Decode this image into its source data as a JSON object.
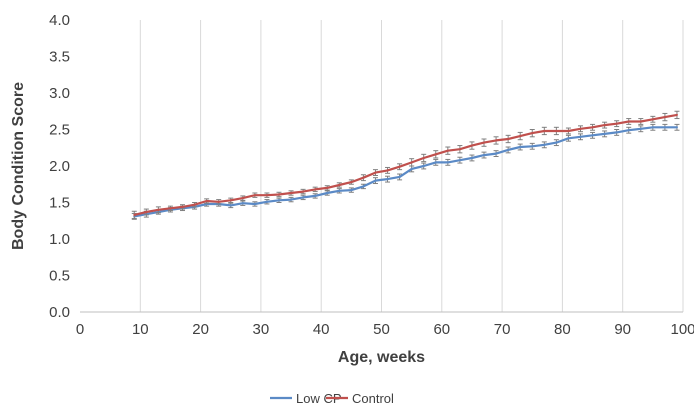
{
  "chart_data": {
    "type": "line",
    "xlabel": "Age, weeks",
    "ylabel": "Body Condition Score",
    "xlim": [
      0,
      100
    ],
    "ylim": [
      0.0,
      4.0
    ],
    "x_ticks": [
      "0",
      "10",
      "20",
      "30",
      "40",
      "50",
      "60",
      "70",
      "80",
      "90",
      "100"
    ],
    "y_ticks": [
      "0.0",
      "0.5",
      "1.0",
      "1.5",
      "2.0",
      "2.5",
      "3.0",
      "3.5",
      "4.0"
    ],
    "grid": "vertical",
    "error_bars": true,
    "legend_position": "bottom",
    "x": [
      9,
      11,
      13,
      15,
      17,
      19,
      21,
      23,
      25,
      27,
      29,
      31,
      33,
      35,
      37,
      39,
      41,
      43,
      45,
      47,
      49,
      51,
      53,
      55,
      57,
      59,
      61,
      63,
      65,
      67,
      69,
      71,
      73,
      75,
      77,
      79,
      81,
      83,
      85,
      87,
      89,
      91,
      93,
      95,
      97,
      99
    ],
    "series": [
      {
        "name": "Low CP",
        "color": "#5b8ac6",
        "values": [
          1.31,
          1.34,
          1.37,
          1.4,
          1.42,
          1.44,
          1.48,
          1.48,
          1.46,
          1.49,
          1.48,
          1.51,
          1.53,
          1.54,
          1.57,
          1.59,
          1.63,
          1.66,
          1.67,
          1.72,
          1.8,
          1.82,
          1.85,
          1.96,
          2.0,
          2.05,
          2.05,
          2.08,
          2.11,
          2.15,
          2.17,
          2.22,
          2.26,
          2.27,
          2.29,
          2.32,
          2.38,
          2.4,
          2.42,
          2.44,
          2.46,
          2.49,
          2.51,
          2.53,
          2.53,
          2.53
        ],
        "errors": [
          0.04,
          0.04,
          0.03,
          0.03,
          0.03,
          0.03,
          0.03,
          0.03,
          0.03,
          0.03,
          0.03,
          0.03,
          0.03,
          0.03,
          0.03,
          0.03,
          0.03,
          0.03,
          0.03,
          0.03,
          0.04,
          0.04,
          0.04,
          0.04,
          0.04,
          0.04,
          0.04,
          0.04,
          0.04,
          0.04,
          0.04,
          0.04,
          0.04,
          0.04,
          0.04,
          0.04,
          0.04,
          0.04,
          0.04,
          0.04,
          0.04,
          0.04,
          0.04,
          0.04,
          0.04,
          0.04
        ]
      },
      {
        "name": "Control",
        "color": "#c0504d",
        "values": [
          1.33,
          1.37,
          1.4,
          1.42,
          1.44,
          1.47,
          1.52,
          1.51,
          1.53,
          1.56,
          1.6,
          1.6,
          1.61,
          1.63,
          1.65,
          1.68,
          1.7,
          1.74,
          1.78,
          1.84,
          1.91,
          1.94,
          1.99,
          2.05,
          2.11,
          2.16,
          2.21,
          2.23,
          2.28,
          2.32,
          2.35,
          2.37,
          2.41,
          2.45,
          2.48,
          2.48,
          2.48,
          2.51,
          2.53,
          2.56,
          2.58,
          2.61,
          2.61,
          2.64,
          2.67,
          2.7
        ],
        "errors": [
          0.05,
          0.04,
          0.04,
          0.03,
          0.03,
          0.03,
          0.03,
          0.03,
          0.03,
          0.03,
          0.03,
          0.03,
          0.03,
          0.03,
          0.03,
          0.03,
          0.03,
          0.03,
          0.03,
          0.04,
          0.04,
          0.04,
          0.04,
          0.05,
          0.05,
          0.05,
          0.05,
          0.05,
          0.05,
          0.05,
          0.05,
          0.05,
          0.05,
          0.05,
          0.05,
          0.05,
          0.04,
          0.04,
          0.04,
          0.04,
          0.04,
          0.04,
          0.04,
          0.04,
          0.05,
          0.05
        ]
      }
    ]
  }
}
